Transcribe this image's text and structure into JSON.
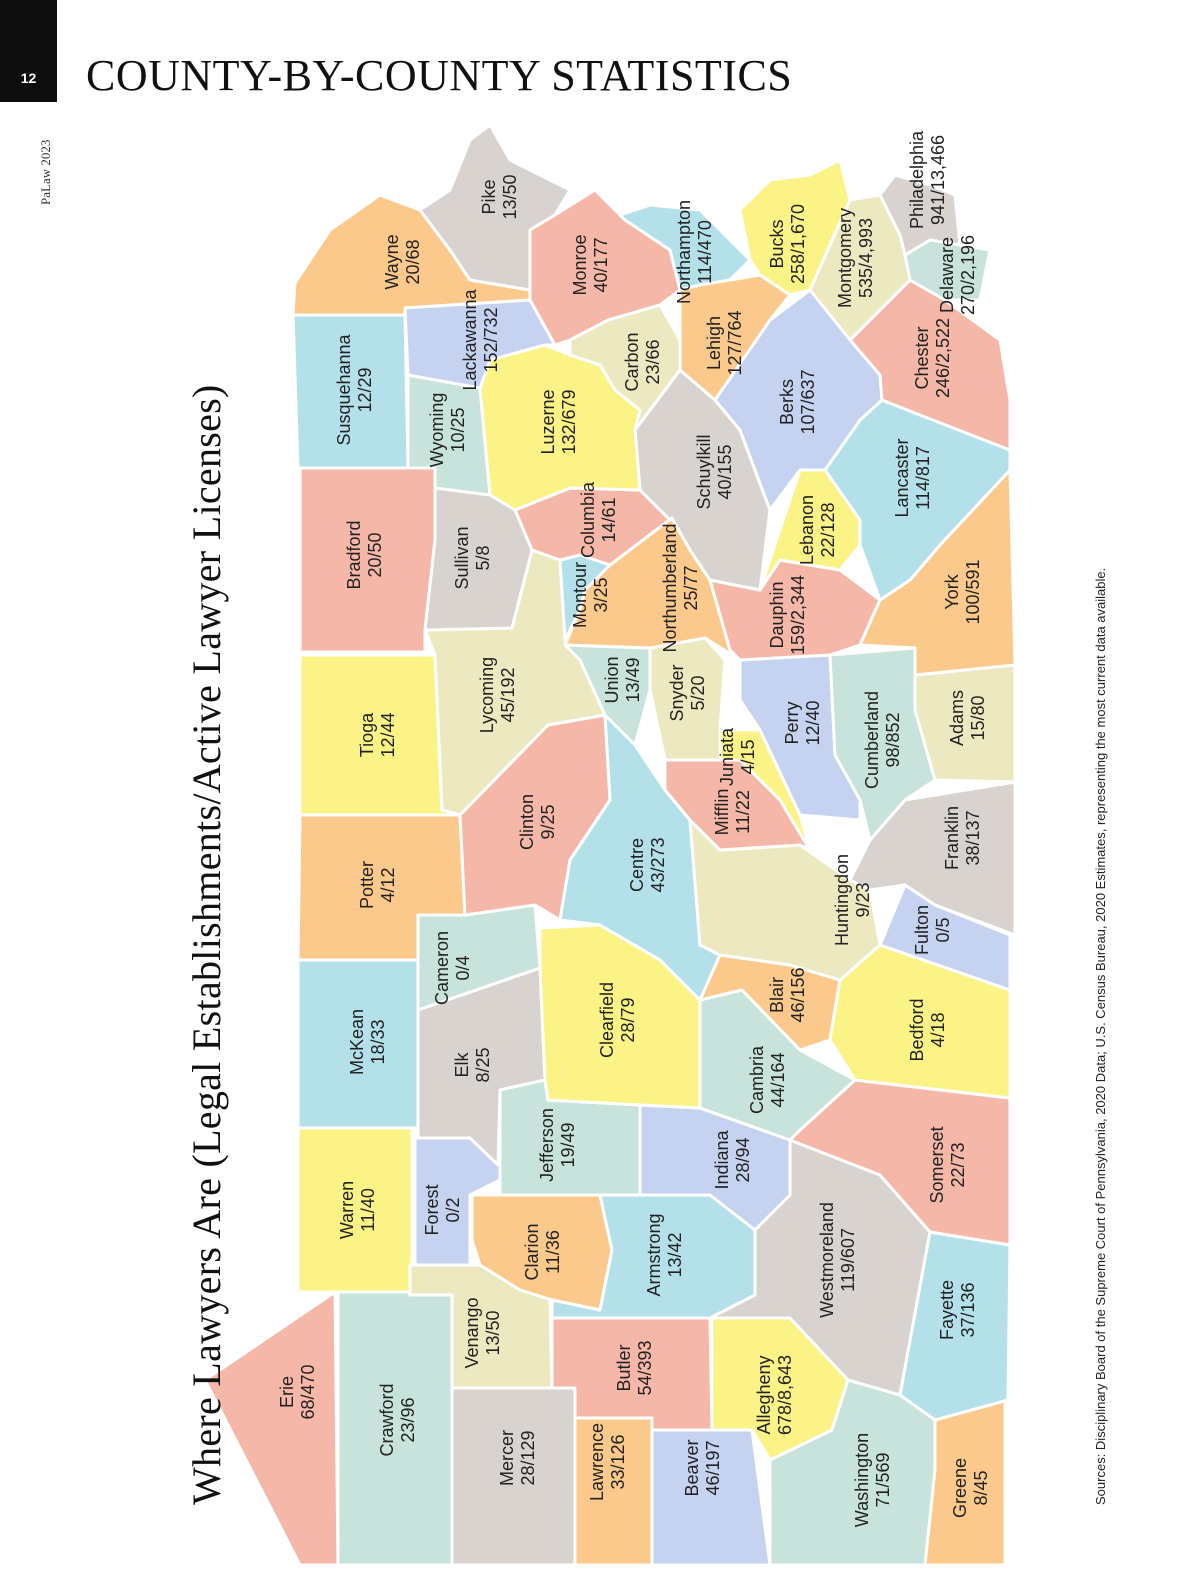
{
  "header": {
    "page_number": "12",
    "title": "COUNTY-BY-COUNTY STATISTICS",
    "running_head": "PaLaw 2023"
  },
  "map": {
    "title": "Where Lawyers Are (Legal Establishments/Active Lawyer Licenses)",
    "sources": "Sources: Disciplinary Board of the Supreme Court of Pennsylvania, 2020 Data; U.S. Census Bureau, 2020 Estimates, representing the most current data available.",
    "colors": {
      "salmon": "#f5b7a7",
      "orange": "#fbc98b",
      "yellow": "#fbf385",
      "cyan": "#b4e0ea",
      "periwinkle": "#c5d2f0",
      "gray": "#d8d3cf",
      "mint": "#c7e3dc",
      "cream": "#ece9c0"
    },
    "counties": [
      {
        "name": "Erie",
        "value": "68/470",
        "color": "#f5b7a7"
      },
      {
        "name": "Crawford",
        "value": "23/96",
        "color": "#c7e3dc"
      },
      {
        "name": "Mercer",
        "value": "28/129",
        "color": "#d8d3cf"
      },
      {
        "name": "Lawrence",
        "value": "33/126",
        "color": "#fbc98b"
      },
      {
        "name": "Beaver",
        "value": "46/197",
        "color": "#c5d2f0"
      },
      {
        "name": "Warren",
        "value": "11/40",
        "color": "#fbf385"
      },
      {
        "name": "Venango",
        "value": "13/50",
        "color": "#ece9c0"
      },
      {
        "name": "Butler",
        "value": "54/393",
        "color": "#f5b7a7"
      },
      {
        "name": "Allegheny",
        "value": "678/8,643",
        "color": "#fbf385"
      },
      {
        "name": "Washington",
        "value": "71/569",
        "color": "#c7e3dc"
      },
      {
        "name": "Greene",
        "value": "8/45",
        "color": "#fbc98b"
      },
      {
        "name": "Forest",
        "value": "0/2",
        "color": "#c5d2f0"
      },
      {
        "name": "Clarion",
        "value": "11/36",
        "color": "#fbc98b"
      },
      {
        "name": "Armstrong",
        "value": "13/42",
        "color": "#b4e0ea"
      },
      {
        "name": "Westmoreland",
        "value": "119/607",
        "color": "#d8d3cf"
      },
      {
        "name": "Fayette",
        "value": "37/136",
        "color": "#b4e0ea"
      },
      {
        "name": "McKean",
        "value": "18/33",
        "color": "#b4e0ea"
      },
      {
        "name": "Elk",
        "value": "8/25",
        "color": "#d8d3cf"
      },
      {
        "name": "Jefferson",
        "value": "19/49",
        "color": "#c7e3dc"
      },
      {
        "name": "Indiana",
        "value": "28/94",
        "color": "#c5d2f0"
      },
      {
        "name": "Somerset",
        "value": "22/73",
        "color": "#f5b7a7"
      },
      {
        "name": "Cameron",
        "value": "0/4",
        "color": "#c7e3dc"
      },
      {
        "name": "Clearfield",
        "value": "28/79",
        "color": "#fbf385"
      },
      {
        "name": "Cambria",
        "value": "44/164",
        "color": "#c7e3dc"
      },
      {
        "name": "Blair",
        "value": "46/156",
        "color": "#fbc98b"
      },
      {
        "name": "Bedford",
        "value": "4/18",
        "color": "#fbf385"
      },
      {
        "name": "Potter",
        "value": "4/12",
        "color": "#fbc98b"
      },
      {
        "name": "Clinton",
        "value": "9/25",
        "color": "#f5b7a7"
      },
      {
        "name": "Centre",
        "value": "43/273",
        "color": "#b4e0ea"
      },
      {
        "name": "Huntingdon",
        "value": "9/23",
        "color": "#ece9c0"
      },
      {
        "name": "Fulton",
        "value": "0/5",
        "color": "#c5d2f0"
      },
      {
        "name": "Franklin",
        "value": "38/137",
        "color": "#d8d3cf"
      },
      {
        "name": "Tioga",
        "value": "12/44",
        "color": "#fbf385"
      },
      {
        "name": "Lycoming",
        "value": "45/192",
        "color": "#ece9c0"
      },
      {
        "name": "Union",
        "value": "13/49",
        "color": "#c7e3dc"
      },
      {
        "name": "Mifflin",
        "value": "11/22",
        "color": "#f5b7a7"
      },
      {
        "name": "Juniata",
        "value": "4/15",
        "color": "#fbf385"
      },
      {
        "name": "Snyder",
        "value": "5/20",
        "color": "#ece9c0"
      },
      {
        "name": "Perry",
        "value": "12/40",
        "color": "#c5d2f0"
      },
      {
        "name": "Cumberland",
        "value": "98/852",
        "color": "#c7e3dc"
      },
      {
        "name": "Adams",
        "value": "15/80",
        "color": "#ece9c0"
      },
      {
        "name": "Bradford",
        "value": "20/50",
        "color": "#f5b7a7"
      },
      {
        "name": "Sullivan",
        "value": "5/8",
        "color": "#d8d3cf"
      },
      {
        "name": "Montour",
        "value": "3/25",
        "color": "#b4e0ea"
      },
      {
        "name": "Northumberland",
        "value": "25/77",
        "color": "#fbc98b"
      },
      {
        "name": "Columbia",
        "value": "14/61",
        "color": "#f5b7a7"
      },
      {
        "name": "Dauphin",
        "value": "159/2,344",
        "color": "#f5b7a7"
      },
      {
        "name": "Lebanon",
        "value": "22/128",
        "color": "#fbf385"
      },
      {
        "name": "York",
        "value": "100/591",
        "color": "#fbc98b"
      },
      {
        "name": "Lancaster",
        "value": "114/817",
        "color": "#b4e0ea"
      },
      {
        "name": "Schuylkill",
        "value": "40/155",
        "color": "#d8d3cf"
      },
      {
        "name": "Susquehanna",
        "value": "12/29",
        "color": "#b4e0ea"
      },
      {
        "name": "Wyoming",
        "value": "10/25",
        "color": "#c7e3dc"
      },
      {
        "name": "Luzerne",
        "value": "132/679",
        "color": "#fbf385"
      },
      {
        "name": "Carbon",
        "value": "23/66",
        "color": "#ece9c0"
      },
      {
        "name": "Berks",
        "value": "107/637",
        "color": "#c5d2f0"
      },
      {
        "name": "Chester",
        "value": "246/2,522",
        "color": "#f5b7a7"
      },
      {
        "name": "Wayne",
        "value": "20/68",
        "color": "#fbc98b"
      },
      {
        "name": "Lackawanna",
        "value": "152/732",
        "color": "#c5d2f0"
      },
      {
        "name": "Pike",
        "value": "13/50",
        "color": "#d8d3cf"
      },
      {
        "name": "Monroe",
        "value": "40/177",
        "color": "#f5b7a7"
      },
      {
        "name": "Northampton",
        "value": "114/470",
        "color": "#b4e0ea"
      },
      {
        "name": "Lehigh",
        "value": "127/764",
        "color": "#fbc98b"
      },
      {
        "name": "Bucks",
        "value": "258/1,670",
        "color": "#fbf385"
      },
      {
        "name": "Montgomery",
        "value": "535/4,993",
        "color": "#ece9c0"
      },
      {
        "name": "Delaware",
        "value": "270/2,196",
        "color": "#c7e3dc"
      },
      {
        "name": "Philadelphia",
        "value": "941/13,466",
        "color": "#d8d3cf"
      }
    ]
  }
}
